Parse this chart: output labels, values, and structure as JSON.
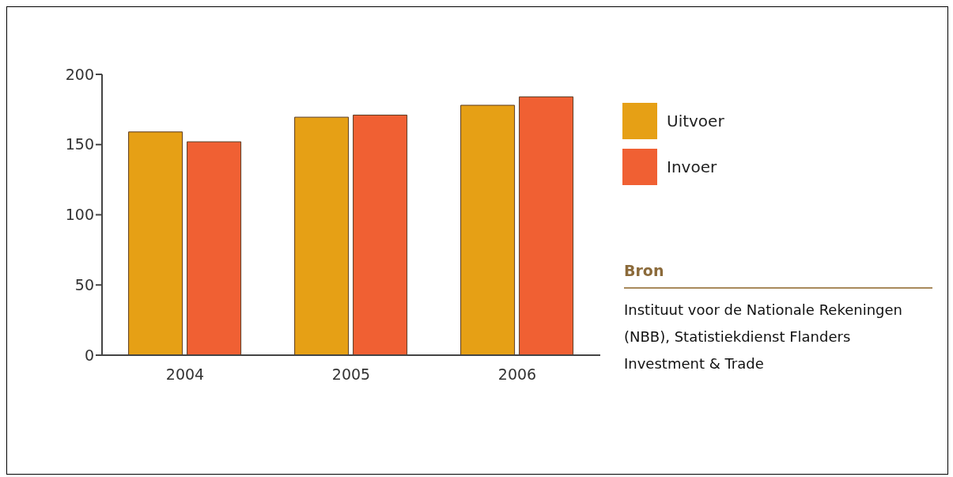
{
  "chart_data": {
    "type": "bar",
    "categories": [
      "2004",
      "2005",
      "2006"
    ],
    "series": [
      {
        "name": "Uitvoer",
        "color": "#e6a015",
        "values": [
          159,
          169.5,
          178
        ]
      },
      {
        "name": "Invoer",
        "color": "#f06033",
        "values": [
          152,
          171,
          184
        ]
      }
    ],
    "ylim": [
      0,
      200
    ],
    "yticks": [
      0,
      50,
      100,
      150,
      200
    ],
    "grid": false,
    "legend": "right",
    "annotations": [
      "Bron",
      "Instituut voor de Nationale Rekeningen (NBB), Statistiekdienst Flanders Investment & Trade"
    ]
  }
}
